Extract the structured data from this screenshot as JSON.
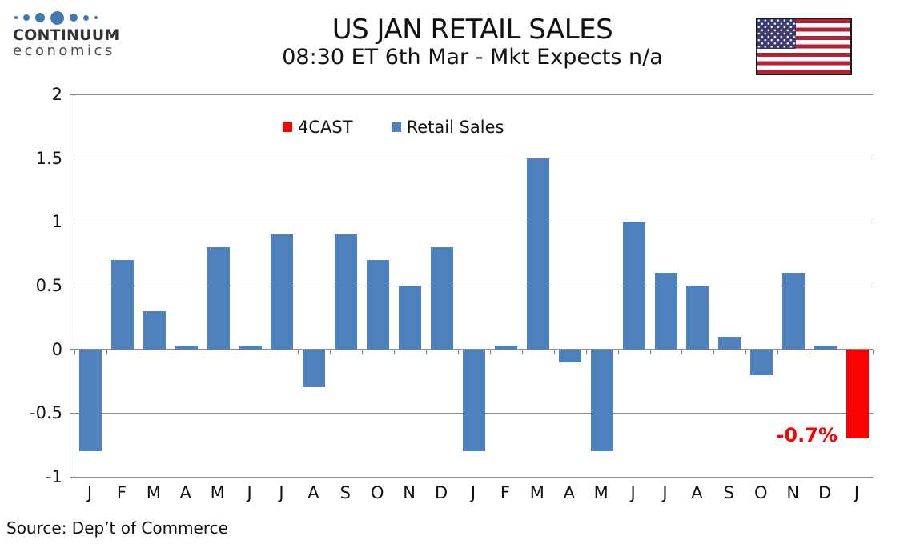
{
  "logo": {
    "brand": "CONTINUUM",
    "subbrand": "economics",
    "dot_color": "#4179B0",
    "dot_sizes": [
      4,
      8,
      12,
      17,
      10,
      7,
      4
    ]
  },
  "header": {
    "title": "US JAN RETAIL SALES",
    "subtitle": "08:30 ET 6th Mar - Mkt Expects n/a"
  },
  "flag": {
    "name": "us-flag",
    "red": "#B22234",
    "blue": "#3C3B6E",
    "white": "#FFFFFF"
  },
  "legend": {
    "items": [
      {
        "label": "4CAST",
        "color": "#FF0000"
      },
      {
        "label": "Retail Sales",
        "color": "#4F81BD"
      }
    ]
  },
  "chart_data": {
    "type": "bar",
    "title": "US JAN RETAIL SALES",
    "subtitle": "08:30 ET 6th Mar - Mkt Expects n/a",
    "categories": [
      "J",
      "F",
      "M",
      "A",
      "M",
      "J",
      "J",
      "A",
      "S",
      "O",
      "N",
      "D",
      "J",
      "F",
      "M",
      "A",
      "M",
      "J",
      "J",
      "A",
      "S",
      "O",
      "N",
      "D",
      "J"
    ],
    "series": [
      {
        "name": "Retail Sales",
        "color": "#4F81BD",
        "values": [
          -0.8,
          0.7,
          0.3,
          0.03,
          0.8,
          0.03,
          0.9,
          -0.3,
          0.9,
          0.7,
          0.5,
          0.8,
          -0.8,
          0.03,
          1.5,
          -0.1,
          -0.8,
          1.0,
          0.6,
          0.5,
          0.1,
          -0.2,
          0.6,
          0.03,
          null
        ]
      },
      {
        "name": "4CAST",
        "color": "#FF0000",
        "values": [
          null,
          null,
          null,
          null,
          null,
          null,
          null,
          null,
          null,
          null,
          null,
          null,
          null,
          null,
          null,
          null,
          null,
          null,
          null,
          null,
          null,
          null,
          null,
          null,
          -0.7
        ]
      }
    ],
    "ylim": [
      -1,
      2
    ],
    "yticks": [
      2,
      1.5,
      1,
      0.5,
      0,
      -0.5,
      -1
    ],
    "xlabel": "",
    "ylabel": "",
    "grid": true,
    "legend_position": "top-center",
    "annotations": [
      {
        "text": "-0.7%",
        "color": "#FF0000",
        "category_index": 24,
        "value": -0.7
      }
    ]
  },
  "colors": {
    "grid": "#8C8C8C",
    "axis": "#7F7F7F",
    "bar_blue": "#4F81BD",
    "bar_red": "#FF0000"
  },
  "source": "Source: Dep’t of Commerce"
}
